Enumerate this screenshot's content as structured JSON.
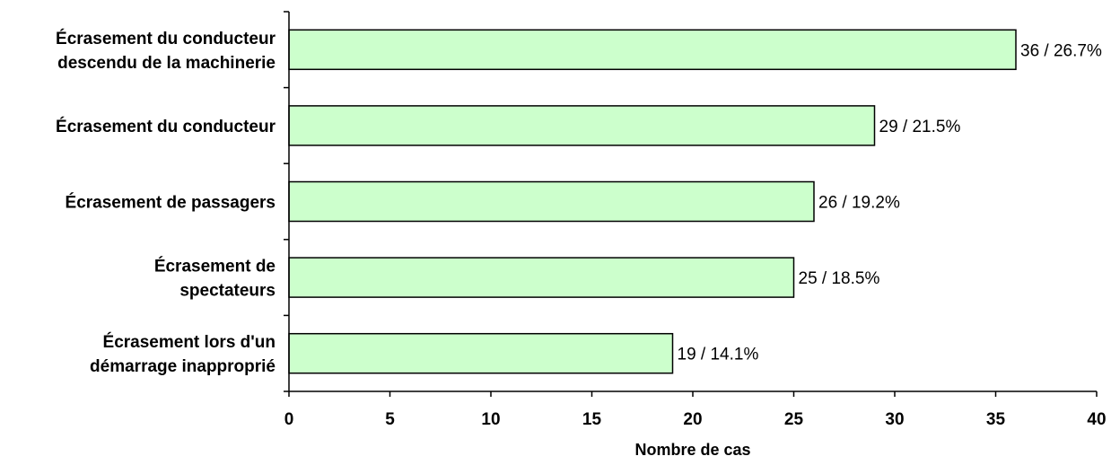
{
  "chart_data": {
    "type": "bar",
    "orientation": "horizontal",
    "categories": [
      [
        "Écrasement du conducteur",
        "descendu de la machinerie"
      ],
      [
        "Écrasement du conducteur"
      ],
      [
        "Écrasement de passagers"
      ],
      [
        "Écrasement de",
        "spectateurs"
      ],
      [
        "Écrasement lors d'un",
        "démarrage inapproprié"
      ]
    ],
    "values": [
      36,
      29,
      26,
      25,
      19
    ],
    "data_labels": [
      "36 / 26.7%",
      "29 / 21.5%",
      "26 / 19.2%",
      "25 / 18.5%",
      "19 / 14.1%"
    ],
    "xlabel": "Nombre de cas",
    "xlim": [
      0,
      40
    ],
    "xticks": [
      0,
      5,
      10,
      15,
      20,
      25,
      30,
      35,
      40
    ],
    "grid": false,
    "bar_color": "#CCFFCC",
    "bar_edge_color": "#000000"
  }
}
